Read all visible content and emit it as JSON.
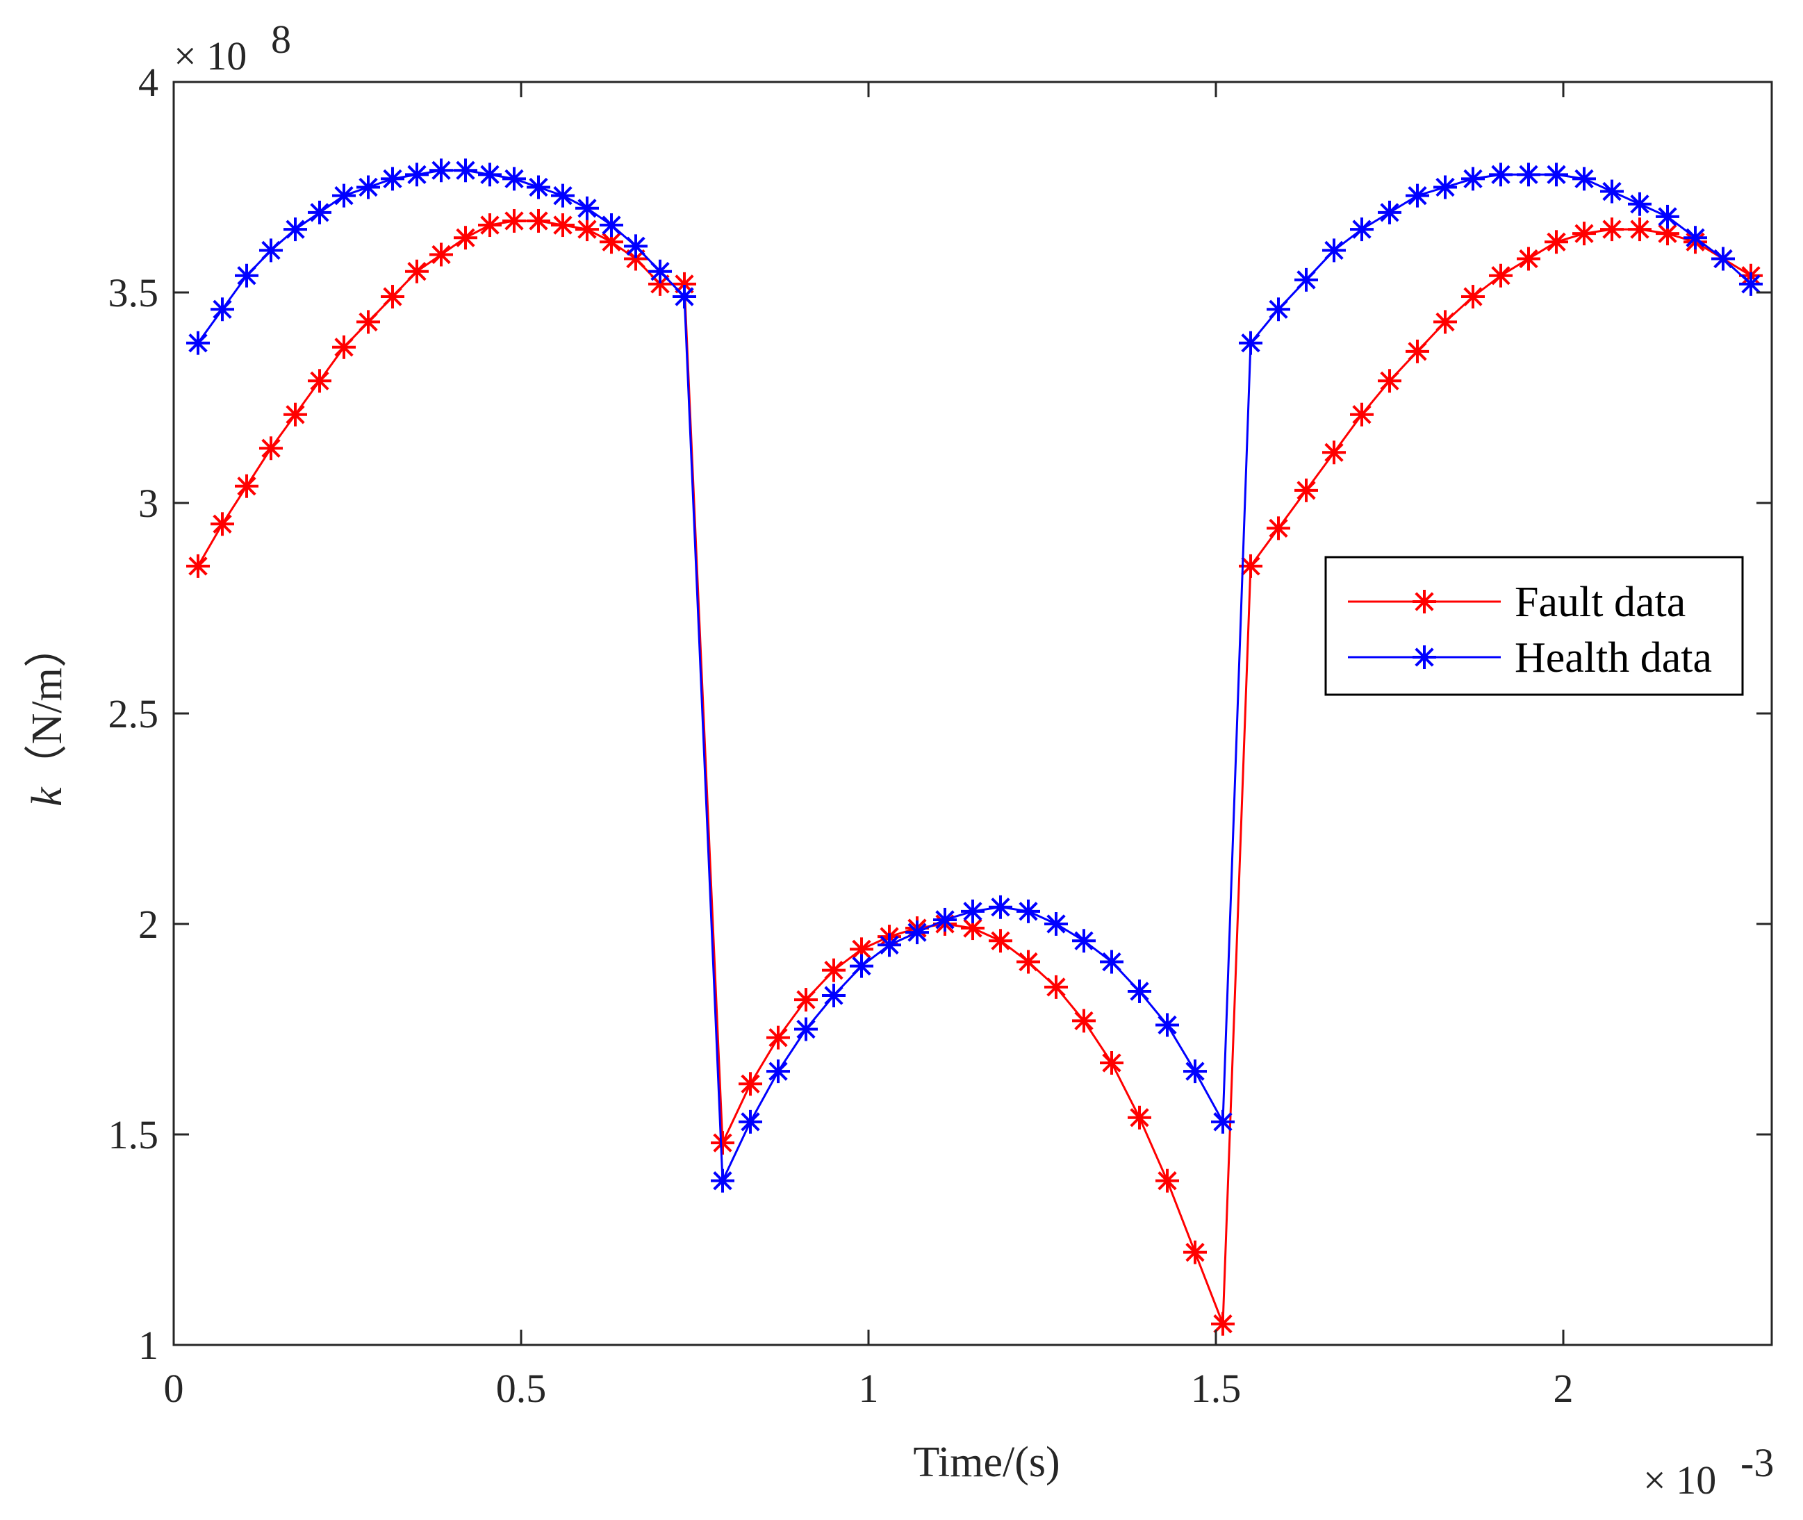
{
  "chart_data": {
    "type": "line",
    "title": "",
    "xlabel": "Time/(s)",
    "ylabel_var": "k",
    "ylabel_unit": "（N/m）",
    "x_exponent": {
      "base": "× 10",
      "power": "-3"
    },
    "y_exponent": {
      "base": "× 10",
      "power": "8"
    },
    "xlim": [
      0,
      2.3
    ],
    "ylim": [
      1,
      4
    ],
    "xticks": [
      0,
      0.5,
      1,
      1.5,
      2
    ],
    "xtick_labels": [
      "0",
      "0.5",
      "1",
      "1.5",
      "2"
    ],
    "yticks": [
      1,
      1.5,
      2,
      2.5,
      3,
      3.5,
      4
    ],
    "ytick_labels": [
      "1",
      "1.5",
      "2",
      "2.5",
      "3",
      "3.5",
      "4"
    ],
    "grid": false,
    "legend_position": "right",
    "series": [
      {
        "name": "Fault data",
        "color": "#ff0000",
        "marker": "asterisk",
        "x": [
          0.035,
          0.07,
          0.105,
          0.14,
          0.175,
          0.21,
          0.245,
          0.28,
          0.315,
          0.35,
          0.385,
          0.42,
          0.455,
          0.49,
          0.525,
          0.56,
          0.595,
          0.63,
          0.665,
          0.7,
          0.735,
          0.79,
          0.83,
          0.87,
          0.91,
          0.95,
          0.99,
          1.03,
          1.07,
          1.11,
          1.15,
          1.19,
          1.23,
          1.27,
          1.31,
          1.35,
          1.39,
          1.43,
          1.47,
          1.51,
          1.55,
          1.59,
          1.63,
          1.67,
          1.71,
          1.75,
          1.79,
          1.83,
          1.87,
          1.91,
          1.95,
          1.99,
          2.03,
          2.07,
          2.11,
          2.15,
          2.19,
          2.23,
          2.27
        ],
        "y": [
          2.85,
          2.95,
          3.04,
          3.13,
          3.21,
          3.29,
          3.37,
          3.43,
          3.49,
          3.55,
          3.59,
          3.63,
          3.66,
          3.67,
          3.67,
          3.66,
          3.65,
          3.62,
          3.58,
          3.52,
          3.52,
          1.48,
          1.62,
          1.73,
          1.82,
          1.89,
          1.94,
          1.97,
          1.99,
          2.0,
          1.99,
          1.96,
          1.91,
          1.85,
          1.77,
          1.67,
          1.54,
          1.39,
          1.22,
          1.05,
          2.85,
          2.94,
          3.03,
          3.12,
          3.21,
          3.29,
          3.36,
          3.43,
          3.49,
          3.54,
          3.58,
          3.62,
          3.64,
          3.65,
          3.65,
          3.64,
          3.62,
          3.58,
          3.54
        ]
      },
      {
        "name": "Health data",
        "color": "#0000ff",
        "marker": "asterisk",
        "x": [
          0.035,
          0.07,
          0.105,
          0.14,
          0.175,
          0.21,
          0.245,
          0.28,
          0.315,
          0.35,
          0.385,
          0.42,
          0.455,
          0.49,
          0.525,
          0.56,
          0.595,
          0.63,
          0.665,
          0.7,
          0.735,
          0.79,
          0.83,
          0.87,
          0.91,
          0.95,
          0.99,
          1.03,
          1.07,
          1.11,
          1.15,
          1.19,
          1.23,
          1.27,
          1.31,
          1.35,
          1.39,
          1.43,
          1.47,
          1.51,
          1.55,
          1.59,
          1.63,
          1.67,
          1.71,
          1.75,
          1.79,
          1.83,
          1.87,
          1.91,
          1.95,
          1.99,
          2.03,
          2.07,
          2.11,
          2.15,
          2.19,
          2.23,
          2.27
        ],
        "y": [
          3.38,
          3.46,
          3.54,
          3.6,
          3.65,
          3.69,
          3.73,
          3.75,
          3.77,
          3.78,
          3.79,
          3.79,
          3.78,
          3.77,
          3.75,
          3.73,
          3.7,
          3.66,
          3.61,
          3.55,
          3.49,
          1.39,
          1.53,
          1.65,
          1.75,
          1.83,
          1.9,
          1.95,
          1.98,
          2.01,
          2.03,
          2.04,
          2.03,
          2.0,
          1.96,
          1.91,
          1.84,
          1.76,
          1.65,
          1.53,
          3.38,
          3.46,
          3.53,
          3.6,
          3.65,
          3.69,
          3.73,
          3.75,
          3.77,
          3.78,
          3.78,
          3.78,
          3.77,
          3.74,
          3.71,
          3.68,
          3.63,
          3.58,
          3.52
        ]
      }
    ]
  }
}
